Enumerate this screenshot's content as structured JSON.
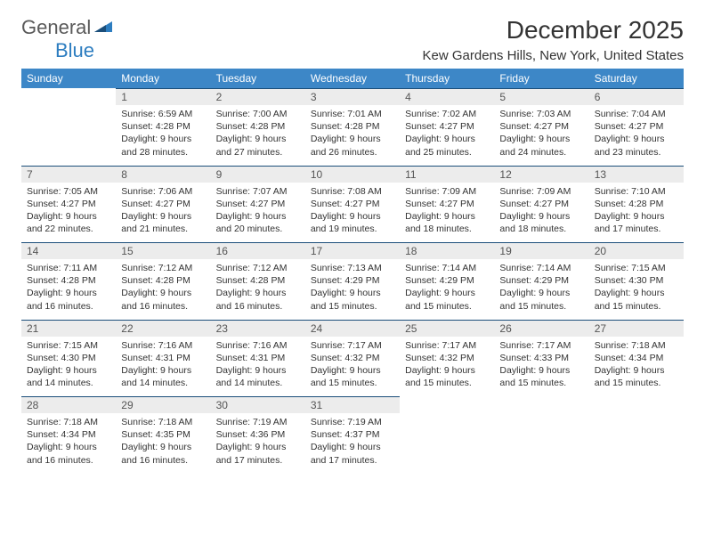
{
  "logo": {
    "general": "General",
    "blue": "Blue"
  },
  "title": "December 2025",
  "location": "Kew Gardens Hills, New York, United States",
  "colors": {
    "header_bg": "#3d87c7",
    "header_text": "#ffffff",
    "daynum_bg": "#ececec",
    "border_top": "#1b4e7a",
    "body_text": "#333333",
    "logo_gray": "#5a5a5a",
    "logo_blue": "#2d7dc0"
  },
  "day_headers": [
    "Sunday",
    "Monday",
    "Tuesday",
    "Wednesday",
    "Thursday",
    "Friday",
    "Saturday"
  ],
  "weeks": [
    [
      null,
      {
        "n": "1",
        "sr": "6:59 AM",
        "ss": "4:28 PM",
        "dl": "9 hours and 28 minutes."
      },
      {
        "n": "2",
        "sr": "7:00 AM",
        "ss": "4:28 PM",
        "dl": "9 hours and 27 minutes."
      },
      {
        "n": "3",
        "sr": "7:01 AM",
        "ss": "4:28 PM",
        "dl": "9 hours and 26 minutes."
      },
      {
        "n": "4",
        "sr": "7:02 AM",
        "ss": "4:27 PM",
        "dl": "9 hours and 25 minutes."
      },
      {
        "n": "5",
        "sr": "7:03 AM",
        "ss": "4:27 PM",
        "dl": "9 hours and 24 minutes."
      },
      {
        "n": "6",
        "sr": "7:04 AM",
        "ss": "4:27 PM",
        "dl": "9 hours and 23 minutes."
      }
    ],
    [
      {
        "n": "7",
        "sr": "7:05 AM",
        "ss": "4:27 PM",
        "dl": "9 hours and 22 minutes."
      },
      {
        "n": "8",
        "sr": "7:06 AM",
        "ss": "4:27 PM",
        "dl": "9 hours and 21 minutes."
      },
      {
        "n": "9",
        "sr": "7:07 AM",
        "ss": "4:27 PM",
        "dl": "9 hours and 20 minutes."
      },
      {
        "n": "10",
        "sr": "7:08 AM",
        "ss": "4:27 PM",
        "dl": "9 hours and 19 minutes."
      },
      {
        "n": "11",
        "sr": "7:09 AM",
        "ss": "4:27 PM",
        "dl": "9 hours and 18 minutes."
      },
      {
        "n": "12",
        "sr": "7:09 AM",
        "ss": "4:27 PM",
        "dl": "9 hours and 18 minutes."
      },
      {
        "n": "13",
        "sr": "7:10 AM",
        "ss": "4:28 PM",
        "dl": "9 hours and 17 minutes."
      }
    ],
    [
      {
        "n": "14",
        "sr": "7:11 AM",
        "ss": "4:28 PM",
        "dl": "9 hours and 16 minutes."
      },
      {
        "n": "15",
        "sr": "7:12 AM",
        "ss": "4:28 PM",
        "dl": "9 hours and 16 minutes."
      },
      {
        "n": "16",
        "sr": "7:12 AM",
        "ss": "4:28 PM",
        "dl": "9 hours and 16 minutes."
      },
      {
        "n": "17",
        "sr": "7:13 AM",
        "ss": "4:29 PM",
        "dl": "9 hours and 15 minutes."
      },
      {
        "n": "18",
        "sr": "7:14 AM",
        "ss": "4:29 PM",
        "dl": "9 hours and 15 minutes."
      },
      {
        "n": "19",
        "sr": "7:14 AM",
        "ss": "4:29 PM",
        "dl": "9 hours and 15 minutes."
      },
      {
        "n": "20",
        "sr": "7:15 AM",
        "ss": "4:30 PM",
        "dl": "9 hours and 15 minutes."
      }
    ],
    [
      {
        "n": "21",
        "sr": "7:15 AM",
        "ss": "4:30 PM",
        "dl": "9 hours and 14 minutes."
      },
      {
        "n": "22",
        "sr": "7:16 AM",
        "ss": "4:31 PM",
        "dl": "9 hours and 14 minutes."
      },
      {
        "n": "23",
        "sr": "7:16 AM",
        "ss": "4:31 PM",
        "dl": "9 hours and 14 minutes."
      },
      {
        "n": "24",
        "sr": "7:17 AM",
        "ss": "4:32 PM",
        "dl": "9 hours and 15 minutes."
      },
      {
        "n": "25",
        "sr": "7:17 AM",
        "ss": "4:32 PM",
        "dl": "9 hours and 15 minutes."
      },
      {
        "n": "26",
        "sr": "7:17 AM",
        "ss": "4:33 PM",
        "dl": "9 hours and 15 minutes."
      },
      {
        "n": "27",
        "sr": "7:18 AM",
        "ss": "4:34 PM",
        "dl": "9 hours and 15 minutes."
      }
    ],
    [
      {
        "n": "28",
        "sr": "7:18 AM",
        "ss": "4:34 PM",
        "dl": "9 hours and 16 minutes."
      },
      {
        "n": "29",
        "sr": "7:18 AM",
        "ss": "4:35 PM",
        "dl": "9 hours and 16 minutes."
      },
      {
        "n": "30",
        "sr": "7:19 AM",
        "ss": "4:36 PM",
        "dl": "9 hours and 17 minutes."
      },
      {
        "n": "31",
        "sr": "7:19 AM",
        "ss": "4:37 PM",
        "dl": "9 hours and 17 minutes."
      },
      null,
      null,
      null
    ]
  ],
  "labels": {
    "sunrise": "Sunrise:",
    "sunset": "Sunset:",
    "daylight": "Daylight:"
  }
}
